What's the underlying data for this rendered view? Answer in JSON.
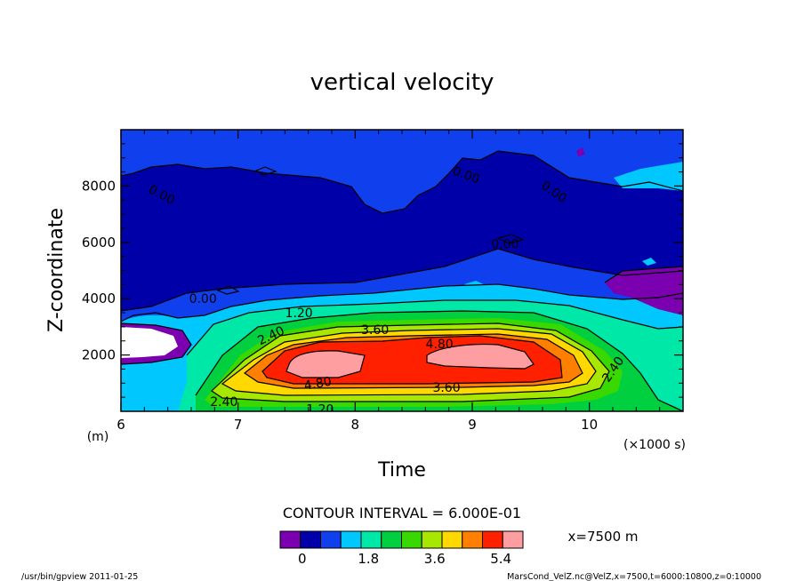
{
  "chart_data": {
    "type": "contour",
    "title": "vertical velocity",
    "xlabel": "Time",
    "ylabel": "Z-coordinate",
    "xunit_label": "(×1000 s)",
    "yunit_label": "(m)",
    "xlim": [
      6,
      10.8
    ],
    "ylim": [
      0,
      10000
    ],
    "x_ticks": [
      6,
      7,
      8,
      9,
      10
    ],
    "y_ticks": [
      2000,
      4000,
      6000,
      8000
    ],
    "contour_interval_text": "CONTOUR INTERVAL = 6.000E-01",
    "annotation": "x=7500 m",
    "footer_left": "/usr/bin/gpview  2011-01-25",
    "footer_right": "MarsCond_VelZ.nc@VelZ,x=7500,t=6000:10800,z=0:10000",
    "colorbar": {
      "levels": [
        -0.6,
        0,
        0.6,
        1.2,
        1.8,
        2.4,
        3.0,
        3.6,
        4.2,
        4.8,
        5.4,
        6.0
      ],
      "colors": [
        "#7a00b0",
        "#0000a8",
        "#1040ee",
        "#00c8ff",
        "#00e8a8",
        "#00d040",
        "#38d800",
        "#a8e800",
        "#ffd800",
        "#ff8000",
        "#ff2000",
        "#ff9ea0"
      ],
      "tick_labels": [
        "0",
        "1.8",
        "3.6",
        "5.4"
      ],
      "tick_values": [
        0,
        1.8,
        3.6,
        5.4
      ]
    },
    "contour_labels": [
      {
        "text": "0.00",
        "x": 6.35,
        "z": 7700,
        "rot": 28
      },
      {
        "text": "0.00",
        "x": 8.95,
        "z": 8400,
        "rot": 20
      },
      {
        "text": "0.00",
        "x": 9.7,
        "z": 7800,
        "rot": 35
      },
      {
        "text": "0.00",
        "x": 9.28,
        "z": 5950,
        "rot": 0
      },
      {
        "text": "0.00",
        "x": 6.7,
        "z": 4000,
        "rot": 0
      },
      {
        "text": "1.20",
        "x": 7.52,
        "z": 3500,
        "rot": 0
      },
      {
        "text": "2.40",
        "x": 7.28,
        "z": 2700,
        "rot": -25
      },
      {
        "text": "3.60",
        "x": 8.17,
        "z": 2900,
        "rot": 0
      },
      {
        "text": "4.80",
        "x": 8.72,
        "z": 2400,
        "rot": 0
      },
      {
        "text": "4.80",
        "x": 7.68,
        "z": 1000,
        "rot": -10
      },
      {
        "text": "3.60",
        "x": 8.78,
        "z": 850,
        "rot": 0
      },
      {
        "text": "2.40",
        "x": 6.88,
        "z": 350,
        "rot": 0
      },
      {
        "text": "1.20",
        "x": 7.7,
        "z": 80,
        "rot": 0
      },
      {
        "text": "2.40",
        "x": 10.2,
        "z": 1500,
        "rot": -55
      }
    ]
  }
}
